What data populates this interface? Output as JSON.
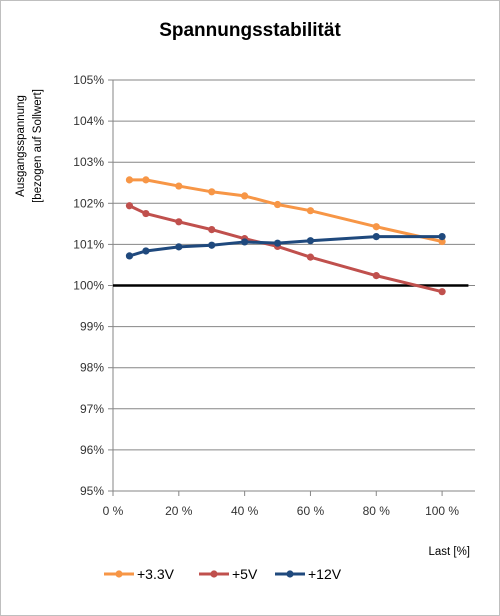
{
  "chart_data": {
    "type": "line",
    "title": "Spannungsstabilität",
    "xlabel": "Last [%]",
    "ylabel_lines": [
      "Ausgangsspannung",
      "[bezogen auf Sollwert]"
    ],
    "xlim": [
      0,
      110
    ],
    "ylim": [
      95,
      105
    ],
    "x_ticks": [
      0,
      20,
      40,
      60,
      80,
      100
    ],
    "x_tick_labels": [
      "0 %",
      "20 %",
      "40 %",
      "60 %",
      "80 %",
      "100 %"
    ],
    "y_ticks": [
      95,
      96,
      97,
      98,
      99,
      100,
      101,
      102,
      103,
      104,
      105
    ],
    "y_tick_labels": [
      "95%",
      "96%",
      "97%",
      "98%",
      "99%",
      "100%",
      "101%",
      "102%",
      "103%",
      "104%",
      "105%"
    ],
    "grid": "horizontal",
    "legend_position": "bottom",
    "reference_line": 100,
    "series": [
      {
        "name": "+3.3V",
        "color": "#f79646",
        "x": [
          5,
          10,
          20,
          30,
          40,
          50,
          60,
          80,
          100
        ],
        "y": [
          102.57,
          102.57,
          102.42,
          102.28,
          102.18,
          101.97,
          101.82,
          101.43,
          101.07
        ]
      },
      {
        "name": "+5V",
        "color": "#c0504d",
        "x": [
          5,
          10,
          20,
          30,
          40,
          50,
          60,
          80,
          100
        ],
        "y": [
          101.94,
          101.75,
          101.55,
          101.36,
          101.14,
          100.95,
          100.69,
          100.24,
          99.85
        ]
      },
      {
        "name": "+12V",
        "color": "#1f497d",
        "x": [
          5,
          10,
          20,
          30,
          40,
          50,
          60,
          80,
          100
        ],
        "y": [
          100.72,
          100.84,
          100.94,
          100.98,
          101.06,
          101.03,
          101.09,
          101.19,
          101.19
        ]
      }
    ]
  }
}
